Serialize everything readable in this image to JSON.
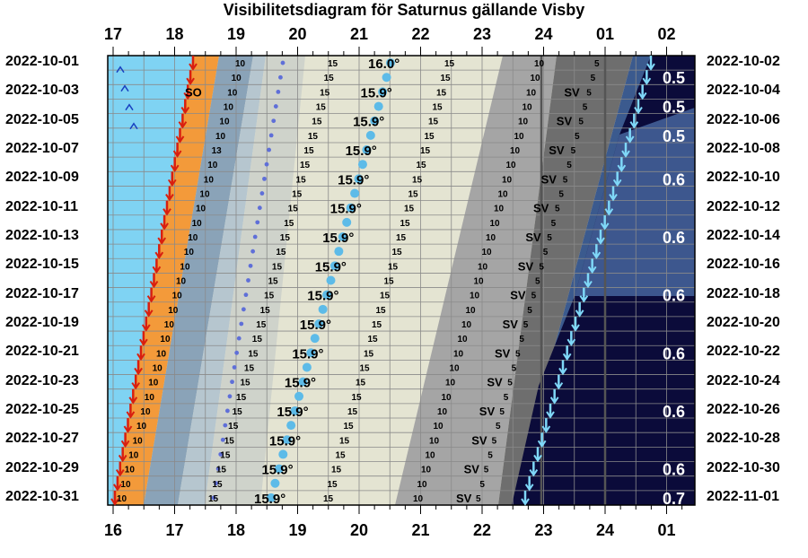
{
  "title": "Visibilitetsdiagram för Saturnus gällande Visby",
  "top_hours": [
    "17",
    "18",
    "19",
    "20",
    "21",
    "22",
    "23",
    "24",
    "01",
    "02"
  ],
  "bottom_hours": [
    "16",
    "17",
    "18",
    "19",
    "20",
    "21",
    "22",
    "23",
    "24",
    "01"
  ],
  "left_dates": [
    "2022-10-01",
    "2022-10-03",
    "2022-10-05",
    "2022-10-07",
    "2022-10-09",
    "2022-10-11",
    "2022-10-13",
    "2022-10-15",
    "2022-10-17",
    "2022-10-19",
    "2022-10-21",
    "2022-10-23",
    "2022-10-25",
    "2022-10-27",
    "2022-10-29",
    "2022-10-31"
  ],
  "right_dates": [
    "2022-10-02",
    "2022-10-04",
    "2022-10-06",
    "2022-10-08",
    "2022-10-10",
    "2022-10-12",
    "2022-10-14",
    "2022-10-16",
    "2022-10-18",
    "2022-10-20",
    "2022-10-22",
    "2022-10-24",
    "2022-10-26",
    "2022-10-28",
    "2022-10-30",
    "2022-11-01"
  ],
  "altitude_labels": [
    "16.0°",
    "15.9°",
    "15.9°",
    "15.9°",
    "15.9°",
    "15.9°",
    "15.9°",
    "15.9°",
    "15.9°",
    "15.9°",
    "15.9°",
    "15.9°",
    "15.9°",
    "15.9°",
    "15.9°",
    "15.9°"
  ],
  "magnitude_labels": [
    "0.5",
    "0.5",
    "0.5",
    "0.6",
    "0.6",
    "0.6",
    "0.6",
    "0.6",
    "0.6",
    "0.7"
  ],
  "sunset_label": "SO",
  "set_label": "SV",
  "contour_labels": {
    "ten": "10",
    "fifteen": "15",
    "five": "5",
    "thirteen": "13"
  },
  "colors": {
    "day_sky": "#7fd3f3",
    "sunset_orange": "#f39a3a",
    "twilight_light": "#b6c6cf",
    "twilight_mid": "#8aa3b8",
    "dusk_gray": "#cfd3cb",
    "above15": "#e4e4d2",
    "saturn_set_gray": "#a5a5a5",
    "below_horizon": "#6e6e6e",
    "night_blue": "#3b5a8e",
    "deep_night": "#0b0b3a",
    "sun_arrow": "#d81f10",
    "moon_arrow": "#7fd8f8",
    "dot_blue": "#5f6fd8",
    "transit_dot": "#5dbbe8"
  }
}
